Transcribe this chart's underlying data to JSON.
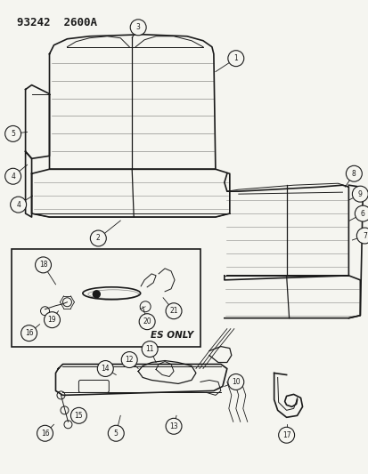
{
  "title": "93242  2600A",
  "background_color": "#f5f5f0",
  "line_color": "#1a1a1a",
  "label_color": "#1a1a1a",
  "figsize": [
    4.14,
    5.33
  ],
  "dpi": 100
}
